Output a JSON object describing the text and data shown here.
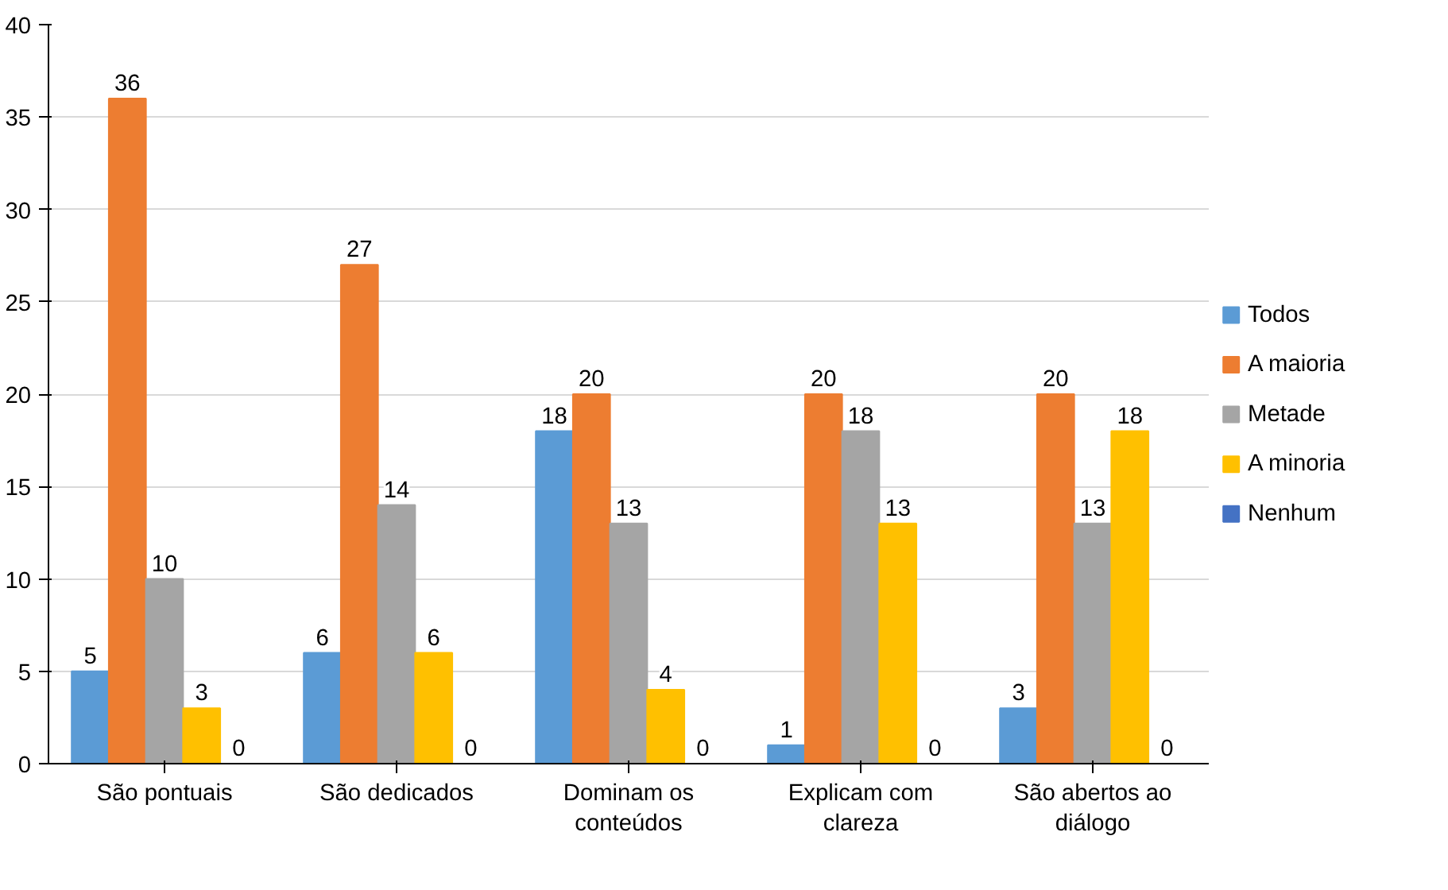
{
  "chart_data": {
    "type": "bar",
    "categories": [
      "São pontuais",
      "São dedicados",
      "Dominam os conteúdos",
      "Explicam com clareza",
      "São abertos ao diálogo"
    ],
    "series": [
      {
        "name": "Todos",
        "color": "#5b9bd5",
        "values": [
          5,
          6,
          18,
          1,
          3
        ]
      },
      {
        "name": "A maioria",
        "color": "#ed7d31",
        "values": [
          36,
          27,
          20,
          20,
          20
        ]
      },
      {
        "name": "Metade",
        "color": "#a5a5a5",
        "values": [
          10,
          14,
          13,
          18,
          13
        ]
      },
      {
        "name": "A minoria",
        "color": "#ffc000",
        "values": [
          3,
          6,
          4,
          13,
          18
        ]
      },
      {
        "name": "Nenhum",
        "color": "#4472c4",
        "values": [
          0,
          0,
          0,
          0,
          0
        ]
      }
    ],
    "ylim": [
      0,
      40
    ],
    "yticks": [
      0,
      5,
      10,
      15,
      20,
      25,
      30,
      35,
      40
    ],
    "grid": "y",
    "legend": "right",
    "data_labels": true
  }
}
